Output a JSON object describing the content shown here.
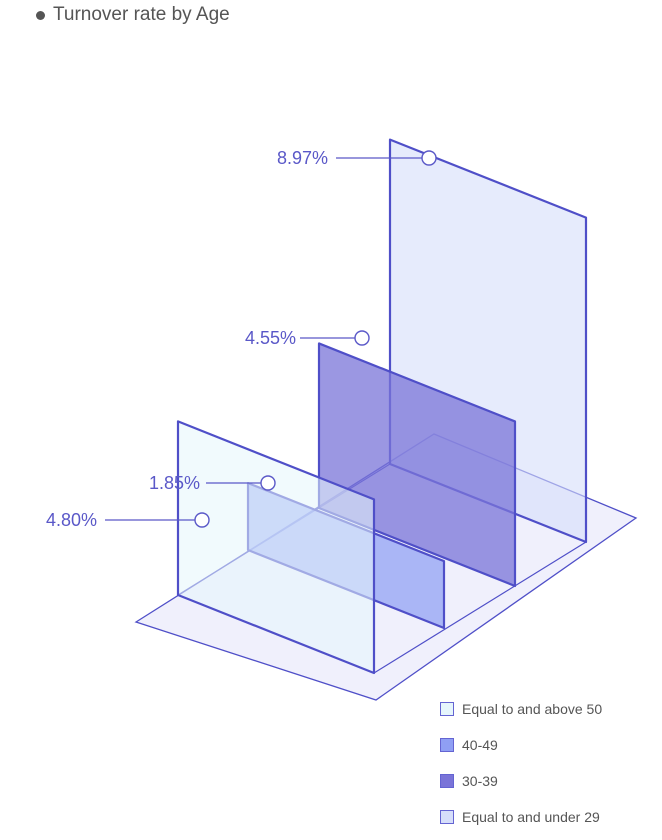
{
  "chart_data": {
    "type": "bar",
    "title": "Turnover rate by Age",
    "categories": [
      "Equal to and above 50",
      "40-49",
      "30-39",
      "Equal to and under 29"
    ],
    "series": [
      {
        "values": [
          4.8,
          1.85,
          4.55,
          8.97
        ]
      }
    ],
    "data_labels": [
      "4.80%",
      "1.85%",
      "4.55%",
      "8.97%"
    ],
    "ylim": [
      0,
      9
    ],
    "legend_position": "bottom-right",
    "colors": {
      "Equal to and above 50": "#e6f6fc",
      "40-49": "#8f9ff4",
      "30-39": "#7a74d8",
      "Equal to and under 29": "#d6defa",
      "edge": "#4f4fc8",
      "floor": "#f0f0fc",
      "label": "#5a58c8"
    }
  }
}
